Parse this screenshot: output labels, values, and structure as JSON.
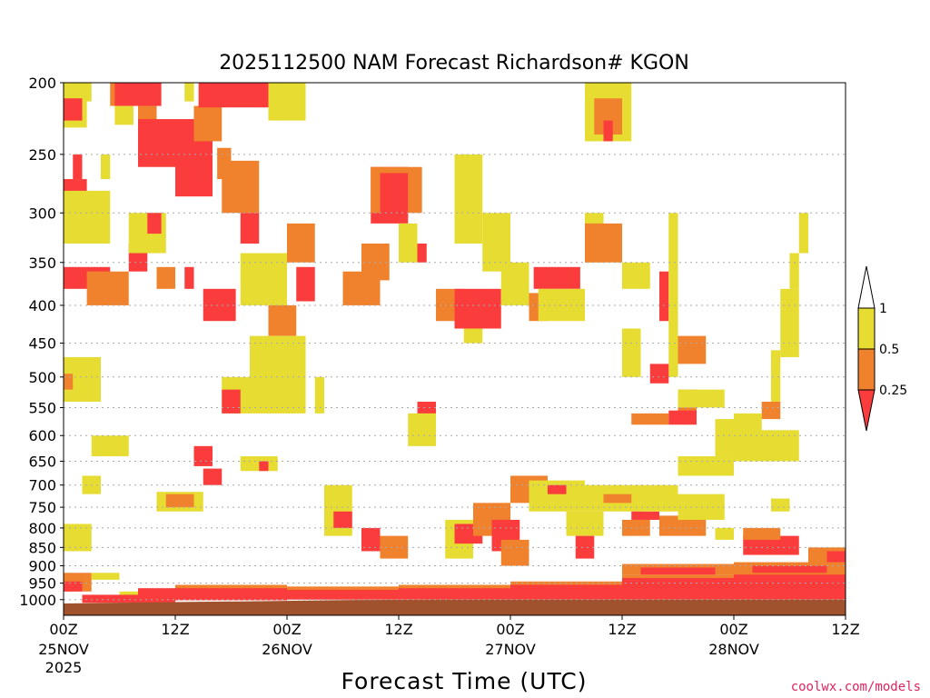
{
  "chart_data": {
    "type": "heatmap",
    "title": "2025112500 NAM Forecast Richardson# KGON",
    "xlabel": "Forecast Time (UTC)",
    "ylabel": "",
    "credit": "coolwx.com/models",
    "y_axis": {
      "scale": "log-pressure",
      "inverted": true,
      "range_hpa": [
        200,
        1050
      ],
      "ticks": [
        "200",
        "250",
        "300",
        "350",
        "400",
        "450",
        "500",
        "550",
        "600",
        "650",
        "700",
        "750",
        "800",
        "850",
        "900",
        "950",
        "1000"
      ]
    },
    "x_axis": {
      "range_hours": [
        0,
        84
      ],
      "ticks": [
        {
          "hour": 0,
          "label": "00Z",
          "date": "25NOV",
          "year": "2025"
        },
        {
          "hour": 12,
          "label": "12Z",
          "date": "",
          "year": ""
        },
        {
          "hour": 24,
          "label": "00Z",
          "date": "26NOV",
          "year": ""
        },
        {
          "hour": 36,
          "label": "12Z",
          "date": "",
          "year": ""
        },
        {
          "hour": 48,
          "label": "00Z",
          "date": "27NOV",
          "year": ""
        },
        {
          "hour": 60,
          "label": "12Z",
          "date": "",
          "year": ""
        },
        {
          "hour": 72,
          "label": "00Z",
          "date": "28NOV",
          "year": ""
        },
        {
          "hour": 84,
          "label": "12Z",
          "date": "",
          "year": ""
        }
      ]
    },
    "legend": {
      "placement": "right",
      "levels": [
        "1",
        "0.5",
        "0.25"
      ],
      "bins": [
        {
          "name": ">1",
          "color": "#ffffff"
        },
        {
          "name": "0.5-1",
          "color": "#e6dc32"
        },
        {
          "name": "0.25-0.5",
          "color": "#f0822d"
        },
        {
          "name": "<0.25",
          "color": "#fa3c3c"
        }
      ]
    },
    "colors": {
      "low": "#fa3c3c",
      "mid": "#f0822d",
      "high": "#e6dc32",
      "ground": "#a0522d",
      "grid": "#aaaaaa"
    },
    "surface_pressure_hpa": [
      1012,
      1008,
      1005,
      1001,
      1000,
      1000,
      1000,
      1000,
      1000
    ],
    "cells": [
      {
        "h": 0,
        "h2": 2.5,
        "p": 200,
        "p2": 230,
        "c": "high"
      },
      {
        "h": 0,
        "h2": 2,
        "p": 210,
        "p2": 225,
        "c": "low"
      },
      {
        "h": 2,
        "h2": 3,
        "p": 200,
        "p2": 212,
        "c": "high"
      },
      {
        "h": 5,
        "h2": 6,
        "p": 200,
        "p2": 215,
        "c": "mid"
      },
      {
        "h": 5.5,
        "h2": 10.5,
        "p": 200,
        "p2": 215,
        "c": "low"
      },
      {
        "h": 5.5,
        "h2": 7.5,
        "p": 215,
        "p2": 228,
        "c": "high"
      },
      {
        "h": 8,
        "h2": 10,
        "p": 215,
        "p2": 228,
        "c": "mid"
      },
      {
        "h": 8,
        "h2": 16,
        "p": 224,
        "p2": 260,
        "c": "low"
      },
      {
        "h": 12,
        "h2": 16,
        "p": 255,
        "p2": 285,
        "c": "low"
      },
      {
        "h": 14,
        "h2": 17,
        "p": 215,
        "p2": 240,
        "c": "mid"
      },
      {
        "h": 14.5,
        "h2": 22,
        "p": 200,
        "p2": 216,
        "c": "low"
      },
      {
        "h": 22,
        "h2": 26,
        "p": 200,
        "p2": 225,
        "c": "high"
      },
      {
        "h": 13,
        "h2": 14,
        "p": 200,
        "p2": 212,
        "c": "high"
      },
      {
        "h": 0,
        "h2": 2.5,
        "p": 270,
        "p2": 320,
        "c": "low"
      },
      {
        "h": 0,
        "h2": 5,
        "p": 280,
        "p2": 330,
        "c": "high"
      },
      {
        "h": 1,
        "h2": 2,
        "p": 250,
        "p2": 270,
        "c": "low"
      },
      {
        "h": 4,
        "h2": 5,
        "p": 250,
        "p2": 270,
        "c": "high"
      },
      {
        "h": 0,
        "h2": 5,
        "p": 355,
        "p2": 380,
        "c": "low"
      },
      {
        "h": 2.5,
        "h2": 7,
        "p": 360,
        "p2": 400,
        "c": "mid"
      },
      {
        "h": 7,
        "h2": 9,
        "p": 330,
        "p2": 360,
        "c": "low"
      },
      {
        "h": 7,
        "h2": 11,
        "p": 300,
        "p2": 340,
        "c": "high"
      },
      {
        "h": 9,
        "h2": 10.5,
        "p": 300,
        "p2": 320,
        "c": "low"
      },
      {
        "h": 10,
        "h2": 12,
        "p": 355,
        "p2": 380,
        "c": "mid"
      },
      {
        "h": 13,
        "h2": 14,
        "p": 355,
        "p2": 380,
        "c": "low"
      },
      {
        "h": 15,
        "h2": 18.5,
        "p": 380,
        "p2": 420,
        "c": "low"
      },
      {
        "h": 16.5,
        "h2": 18,
        "p": 245,
        "p2": 270,
        "c": "mid"
      },
      {
        "h": 17,
        "h2": 21,
        "p": 255,
        "p2": 300,
        "c": "mid"
      },
      {
        "h": 19,
        "h2": 21,
        "p": 300,
        "p2": 330,
        "c": "low"
      },
      {
        "h": 19,
        "h2": 24,
        "p": 340,
        "p2": 400,
        "c": "high"
      },
      {
        "h": 22,
        "h2": 25,
        "p": 400,
        "p2": 440,
        "c": "mid"
      },
      {
        "h": 24,
        "h2": 27,
        "p": 310,
        "p2": 350,
        "c": "mid"
      },
      {
        "h": 25,
        "h2": 27,
        "p": 355,
        "p2": 395,
        "c": "low"
      },
      {
        "h": 21,
        "h2": 26,
        "p": 470,
        "p2": 530,
        "c": "mid"
      },
      {
        "h": 20,
        "h2": 26,
        "p": 440,
        "p2": 560,
        "c": "high"
      },
      {
        "h": 17,
        "h2": 20,
        "p": 500,
        "p2": 560,
        "c": "high"
      },
      {
        "h": 17,
        "h2": 19,
        "p": 520,
        "p2": 560,
        "c": "low"
      },
      {
        "h": 27,
        "h2": 28,
        "p": 500,
        "p2": 560,
        "c": "high"
      },
      {
        "h": 33,
        "h2": 37,
        "p": 260,
        "p2": 310,
        "c": "low"
      },
      {
        "h": 33,
        "h2": 38.5,
        "p": 260,
        "p2": 300,
        "c": "mid"
      },
      {
        "h": 34,
        "h2": 37,
        "p": 265,
        "p2": 305,
        "c": "low"
      },
      {
        "h": 32,
        "h2": 35,
        "p": 330,
        "p2": 370,
        "c": "mid"
      },
      {
        "h": 30,
        "h2": 34,
        "p": 360,
        "p2": 400,
        "c": "mid"
      },
      {
        "h": 36,
        "h2": 38,
        "p": 310,
        "p2": 350,
        "c": "high"
      },
      {
        "h": 38,
        "h2": 39,
        "p": 330,
        "p2": 350,
        "c": "low"
      },
      {
        "h": 40,
        "h2": 43,
        "p": 380,
        "p2": 420,
        "c": "mid"
      },
      {
        "h": 42,
        "h2": 47,
        "p": 380,
        "p2": 430,
        "c": "low"
      },
      {
        "h": 43,
        "h2": 45,
        "p": 430,
        "p2": 450,
        "c": "high"
      },
      {
        "h": 42,
        "h2": 45,
        "p": 250,
        "p2": 330,
        "c": "high"
      },
      {
        "h": 45,
        "h2": 48,
        "p": 300,
        "p2": 360,
        "c": "high"
      },
      {
        "h": 47,
        "h2": 50,
        "p": 350,
        "p2": 400,
        "c": "high"
      },
      {
        "h": 50,
        "h2": 52,
        "p": 385,
        "p2": 420,
        "c": "mid"
      },
      {
        "h": 50.5,
        "h2": 55.5,
        "p": 355,
        "p2": 380,
        "c": "low"
      },
      {
        "h": 51,
        "h2": 56,
        "p": 380,
        "p2": 420,
        "c": "high"
      },
      {
        "h": 56,
        "h2": 58,
        "p": 300,
        "p2": 350,
        "c": "high"
      },
      {
        "h": 56,
        "h2": 61,
        "p": 200,
        "p2": 240,
        "c": "high"
      },
      {
        "h": 57,
        "h2": 60,
        "p": 210,
        "p2": 235,
        "c": "mid"
      },
      {
        "h": 58,
        "h2": 59,
        "p": 225,
        "p2": 240,
        "c": "low"
      },
      {
        "h": 56,
        "h2": 60,
        "p": 310,
        "p2": 350,
        "c": "mid"
      },
      {
        "h": 60,
        "h2": 63,
        "p": 350,
        "p2": 380,
        "c": "high"
      },
      {
        "h": 64,
        "h2": 65,
        "p": 360,
        "p2": 420,
        "c": "low"
      },
      {
        "h": 65,
        "h2": 66,
        "p": 300,
        "p2": 500,
        "c": "high"
      },
      {
        "h": 60,
        "h2": 62,
        "p": 430,
        "p2": 500,
        "c": "high"
      },
      {
        "h": 66,
        "h2": 69,
        "p": 440,
        "p2": 480,
        "c": "mid"
      },
      {
        "h": 63,
        "h2": 65,
        "p": 480,
        "p2": 510,
        "c": "low"
      },
      {
        "h": 66,
        "h2": 68,
        "p": 520,
        "p2": 560,
        "c": "mid"
      },
      {
        "h": 66,
        "h2": 71,
        "p": 520,
        "p2": 550,
        "c": "high"
      },
      {
        "h": 61,
        "h2": 65,
        "p": 560,
        "p2": 580,
        "c": "mid"
      },
      {
        "h": 65,
        "h2": 68,
        "p": 555,
        "p2": 580,
        "c": "low"
      },
      {
        "h": 70,
        "h2": 72,
        "p": 570,
        "p2": 640,
        "c": "high"
      },
      {
        "h": 72,
        "h2": 75,
        "p": 560,
        "p2": 620,
        "c": "high"
      },
      {
        "h": 75,
        "h2": 77,
        "p": 540,
        "p2": 570,
        "c": "mid"
      },
      {
        "h": 76,
        "h2": 77,
        "p": 460,
        "p2": 540,
        "c": "high"
      },
      {
        "h": 77,
        "h2": 79,
        "p": 380,
        "p2": 470,
        "c": "high"
      },
      {
        "h": 78,
        "h2": 79,
        "p": 340,
        "p2": 380,
        "c": "high"
      },
      {
        "h": 79,
        "h2": 80,
        "p": 300,
        "p2": 340,
        "c": "high"
      },
      {
        "h": 0,
        "h2": 4,
        "p": 470,
        "p2": 540,
        "c": "high"
      },
      {
        "h": 0,
        "h2": 1,
        "p": 495,
        "p2": 520,
        "c": "mid"
      },
      {
        "h": 3,
        "h2": 7,
        "p": 600,
        "p2": 640,
        "c": "high"
      },
      {
        "h": 2,
        "h2": 4,
        "p": 680,
        "p2": 720,
        "c": "high"
      },
      {
        "h": 0,
        "h2": 3,
        "p": 790,
        "p2": 860,
        "c": "high"
      },
      {
        "h": 10,
        "h2": 15,
        "p": 715,
        "p2": 760,
        "c": "high"
      },
      {
        "h": 11,
        "h2": 14,
        "p": 720,
        "p2": 750,
        "c": "mid"
      },
      {
        "h": 14,
        "h2": 16,
        "p": 620,
        "p2": 660,
        "c": "low"
      },
      {
        "h": 15,
        "h2": 17,
        "p": 665,
        "p2": 700,
        "c": "low"
      },
      {
        "h": 19,
        "h2": 23,
        "p": 640,
        "p2": 670,
        "c": "high"
      },
      {
        "h": 21,
        "h2": 22,
        "p": 650,
        "p2": 670,
        "c": "low"
      },
      {
        "h": 28,
        "h2": 31,
        "p": 700,
        "p2": 820,
        "c": "high"
      },
      {
        "h": 29,
        "h2": 31,
        "p": 760,
        "p2": 800,
        "c": "low"
      },
      {
        "h": 32,
        "h2": 34,
        "p": 800,
        "p2": 860,
        "c": "low"
      },
      {
        "h": 34,
        "h2": 37,
        "p": 820,
        "p2": 880,
        "c": "mid"
      },
      {
        "h": 38,
        "h2": 40,
        "p": 540,
        "p2": 580,
        "c": "low"
      },
      {
        "h": 37,
        "h2": 40,
        "p": 560,
        "p2": 620,
        "c": "high"
      },
      {
        "h": 41,
        "h2": 44,
        "p": 780,
        "p2": 880,
        "c": "high"
      },
      {
        "h": 42,
        "h2": 45,
        "p": 790,
        "p2": 840,
        "c": "low"
      },
      {
        "h": 44,
        "h2": 48,
        "p": 740,
        "p2": 820,
        "c": "mid"
      },
      {
        "h": 46,
        "h2": 49,
        "p": 780,
        "p2": 860,
        "c": "low"
      },
      {
        "h": 47,
        "h2": 50,
        "p": 830,
        "p2": 900,
        "c": "mid"
      },
      {
        "h": 48,
        "h2": 52,
        "p": 680,
        "p2": 740,
        "c": "mid"
      },
      {
        "h": 50,
        "h2": 56,
        "p": 690,
        "p2": 760,
        "c": "high"
      },
      {
        "h": 52,
        "h2": 54,
        "p": 700,
        "p2": 720,
        "c": "low"
      },
      {
        "h": 54,
        "h2": 58,
        "p": 760,
        "p2": 820,
        "c": "high"
      },
      {
        "h": 55,
        "h2": 57,
        "p": 820,
        "p2": 880,
        "c": "low"
      },
      {
        "h": 56,
        "h2": 62,
        "p": 700,
        "p2": 760,
        "c": "high"
      },
      {
        "h": 58,
        "h2": 61,
        "p": 720,
        "p2": 740,
        "c": "mid"
      },
      {
        "h": 60,
        "h2": 63,
        "p": 780,
        "p2": 820,
        "c": "mid"
      },
      {
        "h": 61,
        "h2": 64,
        "p": 760,
        "p2": 780,
        "c": "low"
      },
      {
        "h": 62,
        "h2": 66,
        "p": 700,
        "p2": 760,
        "c": "high"
      },
      {
        "h": 64,
        "h2": 69,
        "p": 770,
        "p2": 820,
        "c": "mid"
      },
      {
        "h": 66,
        "h2": 71,
        "p": 720,
        "p2": 780,
        "c": "high"
      },
      {
        "h": 70,
        "h2": 72,
        "p": 800,
        "p2": 830,
        "c": "high"
      },
      {
        "h": 73,
        "h2": 79,
        "p": 820,
        "p2": 870,
        "c": "low"
      },
      {
        "h": 73,
        "h2": 77,
        "p": 800,
        "p2": 830,
        "c": "mid"
      },
      {
        "h": 76,
        "h2": 78,
        "p": 730,
        "p2": 760,
        "c": "high"
      },
      {
        "h": 80,
        "h2": 84,
        "p": 850,
        "p2": 900,
        "c": "mid"
      },
      {
        "h": 82,
        "h2": 84,
        "p": 860,
        "p2": 890,
        "c": "low"
      },
      {
        "h": 72,
        "h2": 79,
        "p": 590,
        "p2": 650,
        "c": "high"
      },
      {
        "h": 66,
        "h2": 72,
        "p": 640,
        "p2": 680,
        "c": "high"
      },
      {
        "h": 0,
        "h2": 3,
        "p": 920,
        "p2": 975,
        "c": "mid"
      },
      {
        "h": 0,
        "h2": 2,
        "p": 945,
        "p2": 975,
        "c": "low"
      },
      {
        "h": 3,
        "h2": 6,
        "p": 920,
        "p2": 940,
        "c": "high"
      },
      {
        "h": 6,
        "h2": 12,
        "p": 975,
        "p2": 1005,
        "c": "high"
      },
      {
        "h": 12,
        "h2": 24,
        "p": 955,
        "p2": 995,
        "c": "mid"
      },
      {
        "h": 24,
        "h2": 36,
        "p": 960,
        "p2": 990,
        "c": "mid"
      },
      {
        "h": 36,
        "h2": 48,
        "p": 955,
        "p2": 985,
        "c": "mid"
      },
      {
        "h": 48,
        "h2": 60,
        "p": 945,
        "p2": 980,
        "c": "mid"
      },
      {
        "h": 60,
        "h2": 72,
        "p": 925,
        "p2": 970,
        "c": "mid"
      },
      {
        "h": 72,
        "h2": 84,
        "p": 910,
        "p2": 960,
        "c": "mid"
      },
      {
        "h": 2,
        "h2": 12,
        "p": 985,
        "p2": 1010,
        "c": "low"
      },
      {
        "h": 8,
        "h2": 24,
        "p": 965,
        "p2": 1002,
        "c": "low"
      },
      {
        "h": 24,
        "h2": 36,
        "p": 970,
        "p2": 1000,
        "c": "low"
      },
      {
        "h": 36,
        "h2": 48,
        "p": 965,
        "p2": 1000,
        "c": "low"
      },
      {
        "h": 48,
        "h2": 60,
        "p": 955,
        "p2": 1000,
        "c": "low"
      },
      {
        "h": 60,
        "h2": 72,
        "p": 935,
        "p2": 1000,
        "c": "low"
      },
      {
        "h": 72,
        "h2": 84,
        "p": 925,
        "p2": 1000,
        "c": "low"
      },
      {
        "h": 60,
        "h2": 72,
        "p": 895,
        "p2": 925,
        "c": "mid"
      },
      {
        "h": 72,
        "h2": 84,
        "p": 890,
        "p2": 915,
        "c": "mid"
      },
      {
        "h": 62,
        "h2": 70,
        "p": 905,
        "p2": 925,
        "c": "low"
      },
      {
        "h": 74,
        "h2": 82,
        "p": 900,
        "p2": 920,
        "c": "low"
      }
    ]
  }
}
